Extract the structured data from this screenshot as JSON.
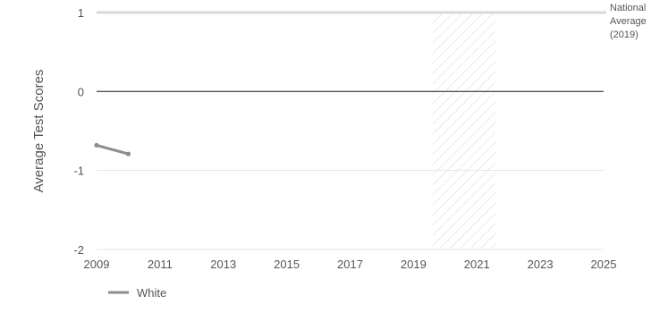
{
  "chart_data": {
    "type": "line",
    "ylabel": "Average Test Scores",
    "xlabel": "",
    "xlim": [
      2009,
      2025
    ],
    "ylim": [
      -2,
      1
    ],
    "x_ticks": [
      "2009",
      "2011",
      "2013",
      "2015",
      "2017",
      "2019",
      "2021",
      "2023",
      "2025"
    ],
    "y_ticks": [
      "1",
      "0",
      "-1",
      "-2"
    ],
    "reference_line": {
      "value": 1,
      "label": [
        "National",
        "Average",
        "(2019)"
      ],
      "color": "#d9d9d9"
    },
    "zero_line": {
      "value": 0,
      "color": "#555555"
    },
    "shaded_region": {
      "from": 2019.6,
      "to": 2021.6,
      "pattern": "diagonal-hatch"
    },
    "grid": true,
    "legend_position": "bottom-left",
    "series": [
      {
        "name": "White",
        "color": "#8a8d92",
        "x": [
          2009,
          2010
        ],
        "y": [
          -0.68,
          -0.79
        ]
      }
    ]
  }
}
